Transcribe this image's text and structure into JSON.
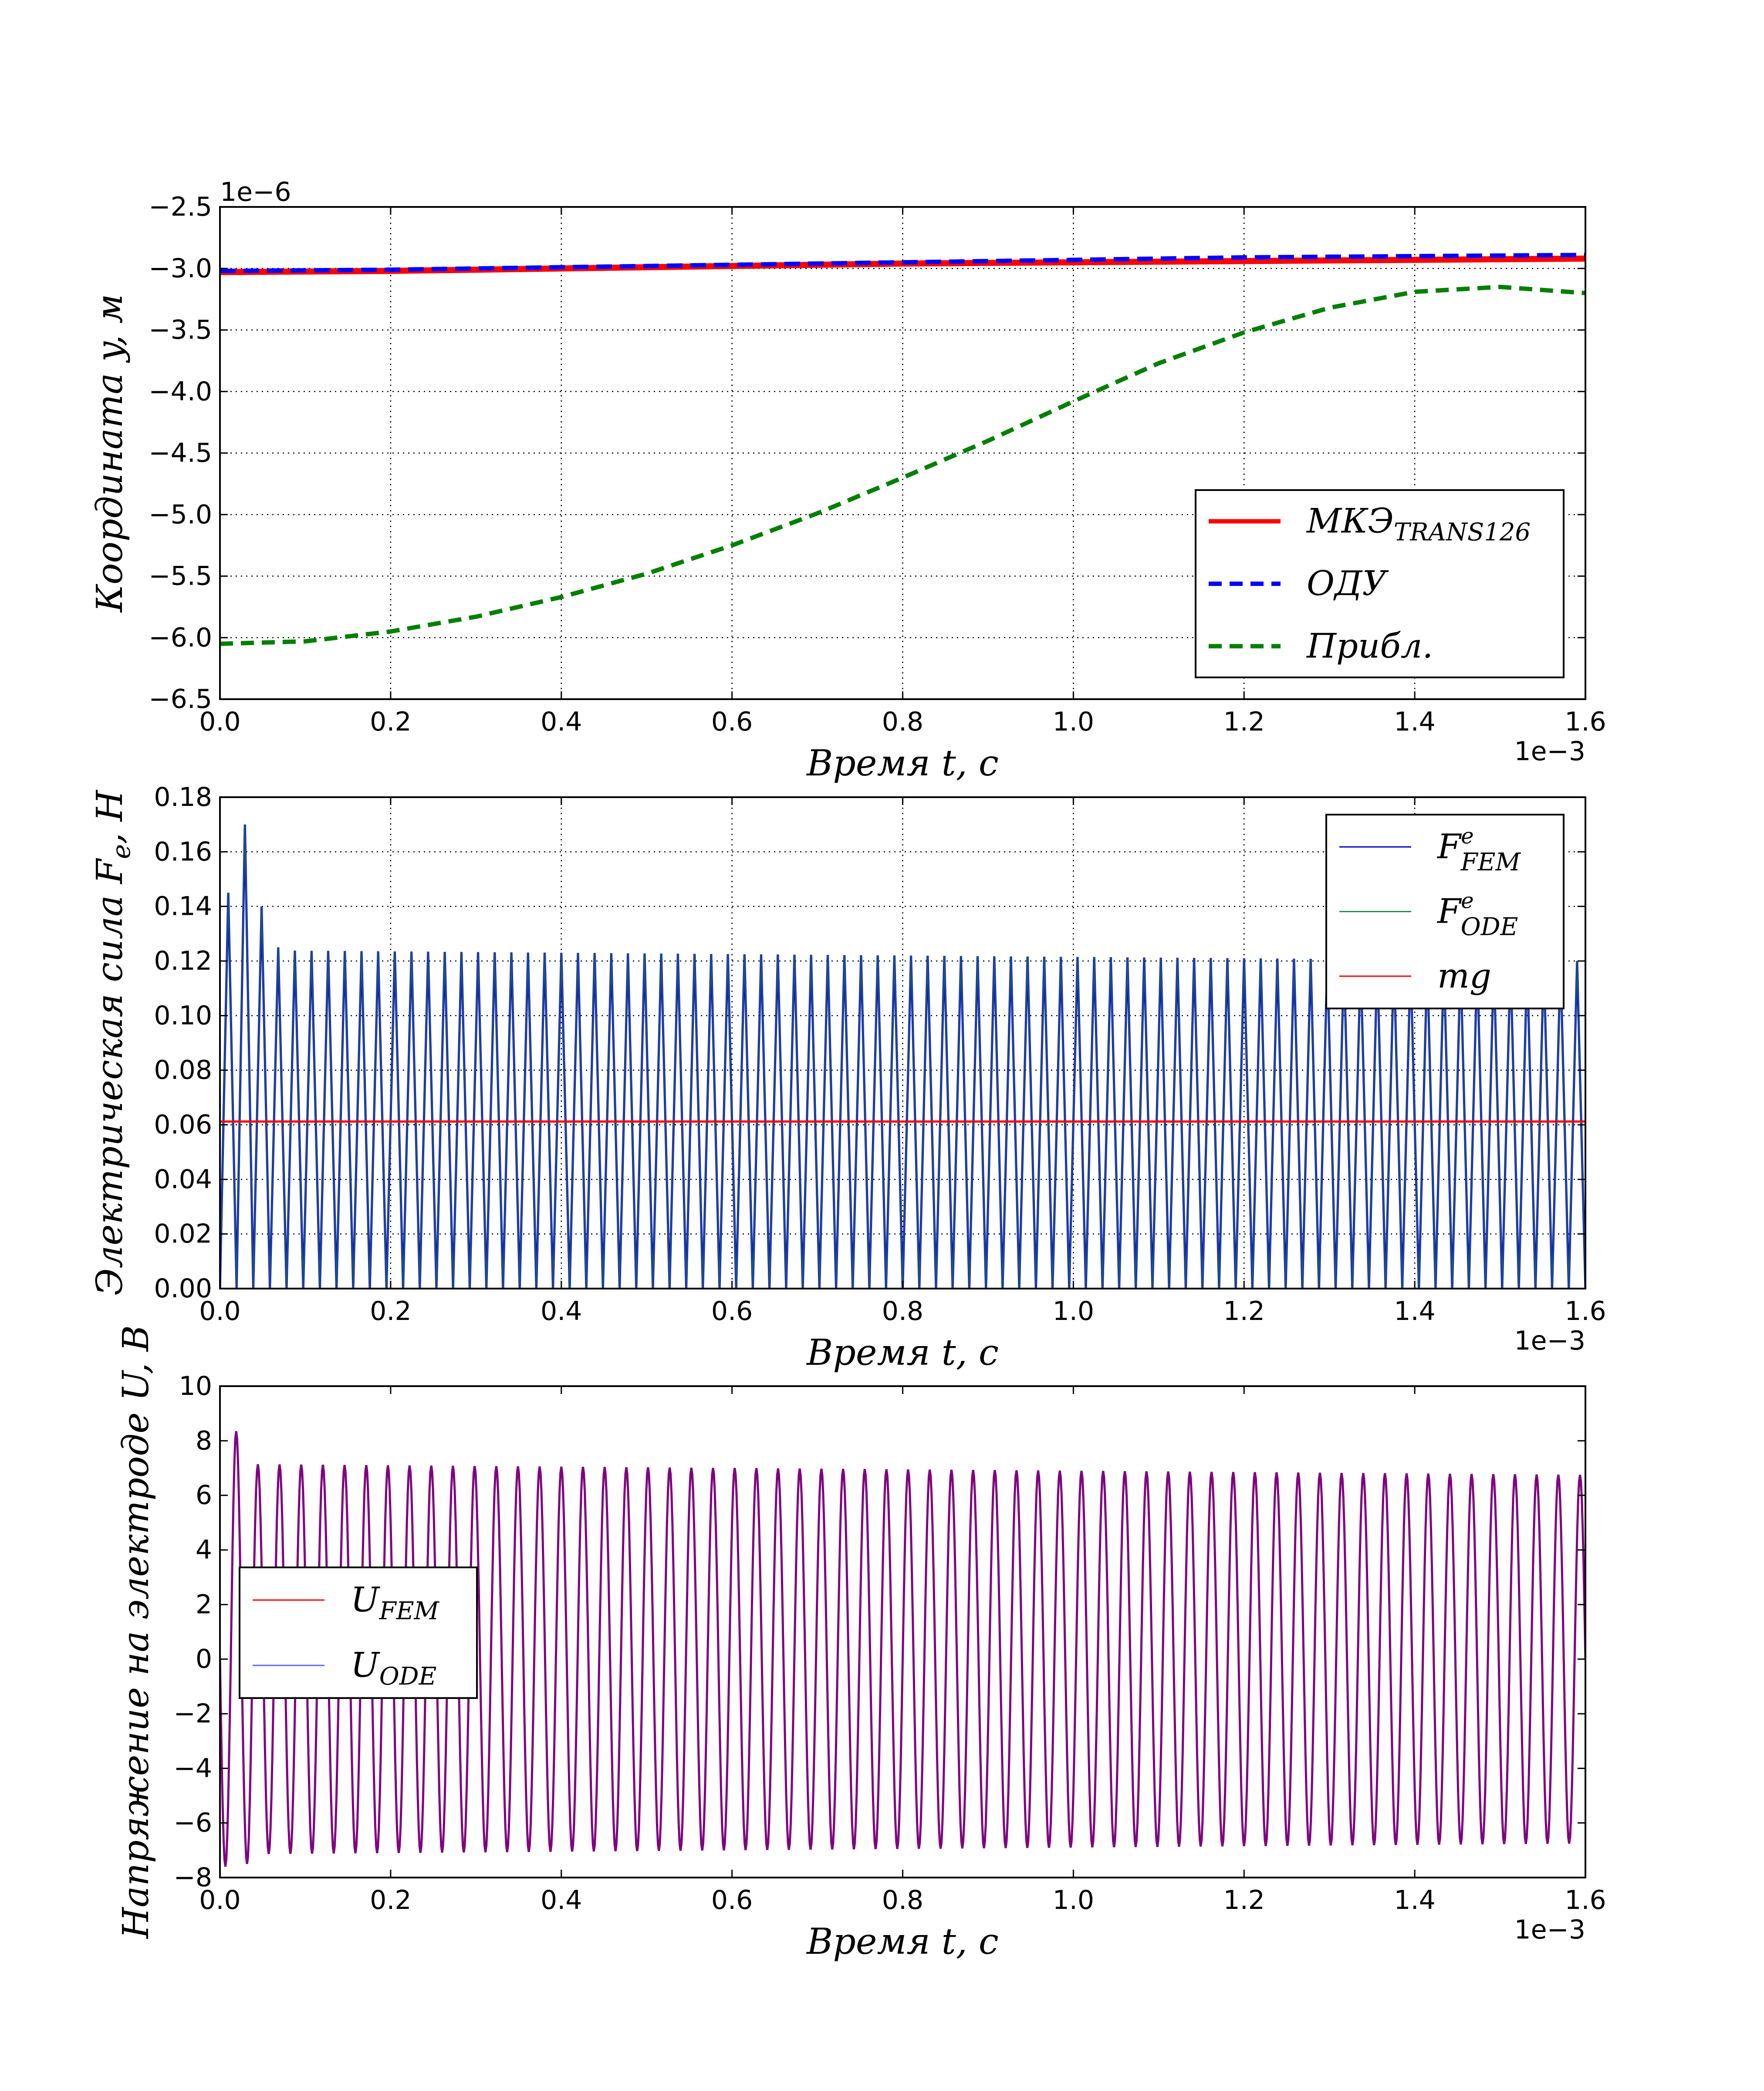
{
  "chart_data": [
    {
      "type": "line",
      "xlabel": "Время t,  с",
      "ylabel": "Координата y, м",
      "x_offset_label": "1e−3",
      "y_offset_label": "1e−6",
      "xlim": [
        0.0,
        1.6
      ],
      "ylim": [
        -6.5,
        -2.5
      ],
      "xticks": [
        "0.0",
        "0.2",
        "0.4",
        "0.6",
        "0.8",
        "1.0",
        "1.2",
        "1.4",
        "1.6"
      ],
      "yticks": [
        "−6.5",
        "−6.0",
        "−5.5",
        "−5.0",
        "−4.5",
        "−4.0",
        "−3.5",
        "−3.0",
        "−2.5"
      ],
      "grid": true,
      "legend_position": "lower-right",
      "series": [
        {
          "name": "МКЭ",
          "subscript": "TRANS126",
          "color": "#ff0000",
          "style": "solid",
          "x": [
            0.0,
            0.2,
            0.4,
            0.6,
            0.8,
            1.0,
            1.2,
            1.4,
            1.6
          ],
          "y": [
            -3.03,
            -3.02,
            -3.0,
            -2.98,
            -2.96,
            -2.95,
            -2.94,
            -2.93,
            -2.92
          ]
        },
        {
          "name": "ОДУ",
          "color": "#0000ff",
          "style": "dashed",
          "x": [
            0.0,
            0.2,
            0.4,
            0.6,
            0.8,
            1.0,
            1.2,
            1.4,
            1.6
          ],
          "y": [
            -3.02,
            -3.01,
            -2.99,
            -2.97,
            -2.95,
            -2.93,
            -2.91,
            -2.9,
            -2.89
          ]
        },
        {
          "name": "Прибл.",
          "color": "#007f00",
          "style": "dashed",
          "x": [
            0.0,
            0.1,
            0.2,
            0.3,
            0.4,
            0.5,
            0.6,
            0.7,
            0.8,
            0.9,
            1.0,
            1.1,
            1.2,
            1.3,
            1.4,
            1.5,
            1.6
          ],
          "y": [
            -6.05,
            -6.03,
            -5.95,
            -5.83,
            -5.67,
            -5.48,
            -5.25,
            -4.99,
            -4.7,
            -4.4,
            -4.08,
            -3.77,
            -3.52,
            -3.32,
            -3.19,
            -3.15,
            -3.2
          ]
        }
      ]
    },
    {
      "type": "line",
      "xlabel": "Время t,  с",
      "ylabel": "Электрическая сила F",
      "ylabel_sub": "e",
      "ylabel_tail": ",  Н",
      "x_offset_label": "1e−3",
      "xlim": [
        0.0,
        1.6
      ],
      "ylim": [
        0.0,
        0.18
      ],
      "xticks": [
        "0.0",
        "0.2",
        "0.4",
        "0.6",
        "0.8",
        "1.0",
        "1.2",
        "1.4",
        "1.6"
      ],
      "yticks": [
        "0.00",
        "0.02",
        "0.04",
        "0.06",
        "0.08",
        "0.10",
        "0.12",
        "0.14",
        "0.16",
        "0.18"
      ],
      "grid": true,
      "legend_position": "top-right",
      "oscillation": {
        "cycles": 82,
        "baseline": 0.0,
        "peak_start": 0.124,
        "peak_end": 0.12,
        "initial_peaks": [
          0.145,
          0.17,
          0.14,
          0.125
        ]
      },
      "series": [
        {
          "name": "F",
          "superscript": "e",
          "subscript": "FEM",
          "color": "#0000cc"
        },
        {
          "name": "F",
          "superscript": "e",
          "subscript": "ODE",
          "color": "#2e8b57"
        },
        {
          "name": "mg",
          "color": "#ff0000",
          "value": 0.0612
        }
      ]
    },
    {
      "type": "line",
      "xlabel": "Время t,  с",
      "ylabel": "Напряжение на электроде U,  В",
      "x_offset_label": "1e−3",
      "xlim": [
        0.0,
        1.6
      ],
      "ylim": [
        -8,
        10
      ],
      "xticks": [
        "0.0",
        "0.2",
        "0.4",
        "0.6",
        "0.8",
        "1.0",
        "1.2",
        "1.4",
        "1.6"
      ],
      "yticks": [
        "−8",
        "−6",
        "−4",
        "−2",
        "0",
        "2",
        "4",
        "6",
        "8",
        "10"
      ],
      "grid": false,
      "legend_position": "center-left",
      "oscillation": {
        "cycles": 63,
        "amplitude_start": 7.15,
        "amplitude_end": 6.75,
        "initial_peaks": [
          -7.6,
          8.35,
          -7.5
        ]
      },
      "series": [
        {
          "name": "U",
          "subscript": "FEM",
          "color": "#ff0000"
        },
        {
          "name": "U",
          "subscript": "ODE",
          "color": "#6060ff"
        }
      ],
      "trace_color": "#800080"
    }
  ]
}
